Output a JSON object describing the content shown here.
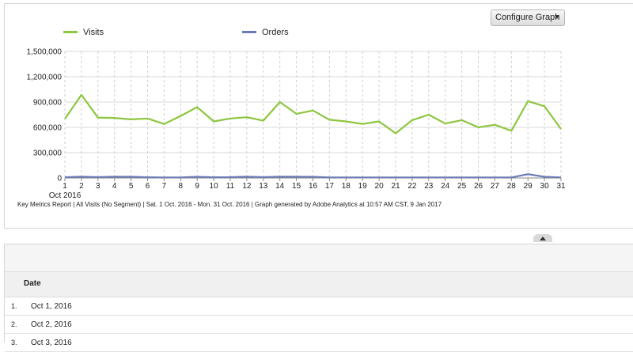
{
  "graph": {
    "configure_label": "Configure Graph",
    "footnote": "Key Metrics Report | All Visits (No Segment) | Sat.  1 Oct. 2016 - Mon. 31 Oct. 2016 | Graph generated by Adobe Analytics at 10:57 AM CST,  9 Jan 2017"
  },
  "chart_data": {
    "type": "line",
    "x": [
      1,
      2,
      3,
      4,
      5,
      6,
      7,
      8,
      9,
      10,
      11,
      12,
      13,
      14,
      15,
      16,
      17,
      18,
      19,
      20,
      21,
      22,
      23,
      24,
      25,
      26,
      27,
      28,
      29,
      30,
      31
    ],
    "x_tick_sublabel": "Oct 2016",
    "ylim": [
      0,
      1500000
    ],
    "y_ticks": [
      "0",
      "300,000",
      "600,000",
      "900,000",
      "1,200,000",
      "1,500,000"
    ],
    "grid": true,
    "legend_position": "top-left",
    "series": [
      {
        "name": "Visits",
        "color": "#8dc63f",
        "values": [
          700000,
          985000,
          715000,
          712000,
          695000,
          705000,
          640000,
          735000,
          840000,
          670000,
          705000,
          720000,
          680000,
          900000,
          760000,
          800000,
          690000,
          670000,
          640000,
          670000,
          530000,
          685000,
          750000,
          645000,
          685000,
          600000,
          630000,
          560000,
          910000,
          850000,
          580000
        ]
      },
      {
        "name": "Orders",
        "color": "#6b7bb5",
        "values": [
          8000,
          15000,
          9000,
          15000,
          14000,
          8000,
          7000,
          7000,
          14000,
          8000,
          9000,
          15000,
          9000,
          15000,
          15000,
          14000,
          7000,
          7000,
          7000,
          7000,
          7000,
          7000,
          7000,
          7000,
          7000,
          7000,
          7000,
          7000,
          45000,
          14000,
          7000
        ]
      }
    ]
  },
  "table": {
    "header_date": "Date",
    "rows": [
      {
        "num": "1.",
        "date": "Oct 1, 2016"
      },
      {
        "num": "2.",
        "date": "Oct 2, 2016"
      },
      {
        "num": "3.",
        "date": "Oct 3, 2016"
      }
    ]
  }
}
